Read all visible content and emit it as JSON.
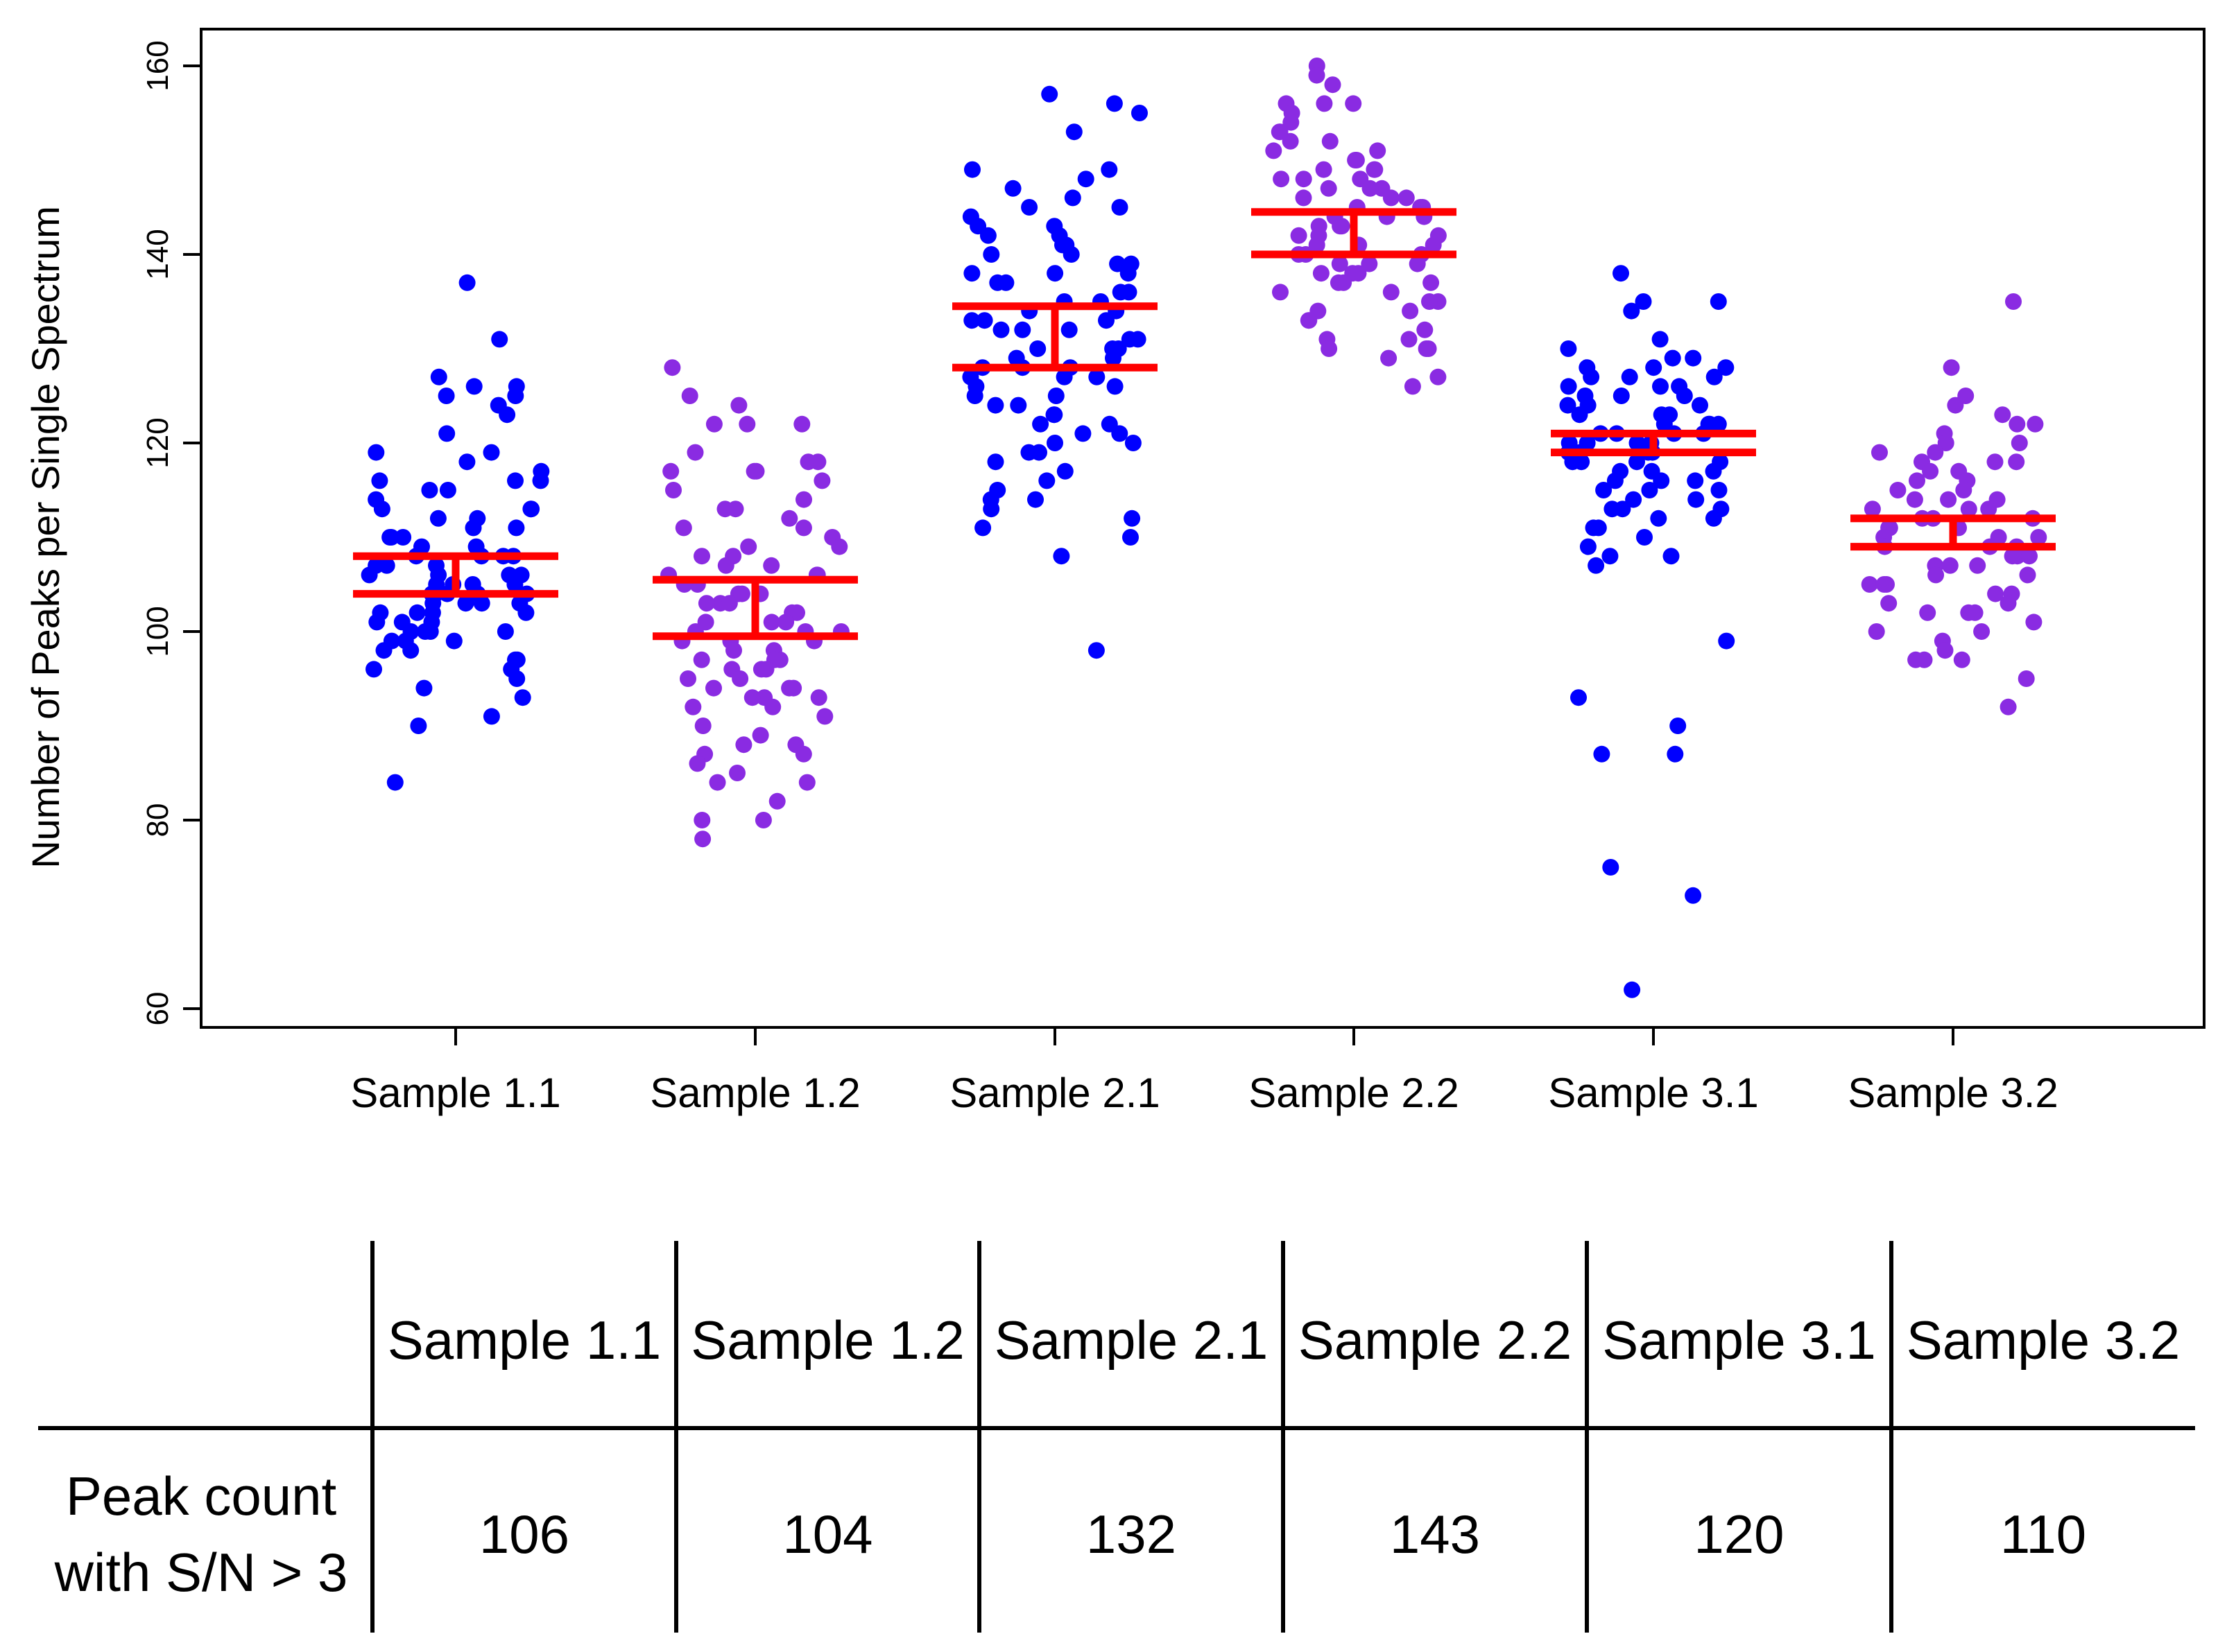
{
  "colors": {
    "blue": "#0000ff",
    "purple": "#8a2be2",
    "red": "#ff0000",
    "axis": "#000000"
  },
  "chart_data": {
    "type": "scatter",
    "title": "",
    "xlabel": "",
    "ylabel": "Number of Peaks per Single Spectrum",
    "ylim": [
      57,
      163
    ],
    "yticks": [
      60,
      80,
      100,
      120,
      140,
      160
    ],
    "grid": false,
    "series": [
      {
        "name": "Sample 1.1",
        "color": "blue",
        "ci": [
          104,
          108
        ],
        "values": [
          137,
          131,
          127,
          126,
          126,
          125,
          125,
          124,
          123,
          121,
          119,
          119,
          118,
          117,
          116,
          116,
          116,
          115,
          115,
          114,
          113,
          113,
          113,
          112,
          112,
          111,
          111,
          110,
          110,
          110,
          109,
          109,
          108,
          108,
          108,
          108,
          107,
          107,
          107,
          106,
          106,
          106,
          106,
          105,
          105,
          105,
          105,
          104,
          104,
          104,
          104,
          104,
          103,
          103,
          103,
          103,
          102,
          102,
          102,
          102,
          101,
          101,
          101,
          100,
          100,
          100,
          100,
          99,
          99,
          99,
          98,
          98,
          97,
          97,
          96,
          96,
          95,
          94,
          93,
          91,
          90,
          84
        ]
      },
      {
        "name": "Sample 1.2",
        "color": "purple",
        "ci": [
          99.5,
          105.5
        ],
        "values": [
          128,
          125,
          124,
          122,
          122,
          122,
          119,
          118,
          118,
          117,
          117,
          117,
          116,
          115,
          114,
          113,
          113,
          112,
          111,
          111,
          110,
          109,
          109,
          108,
          108,
          107,
          107,
          106,
          106,
          106,
          105,
          105,
          104,
          104,
          104,
          103,
          103,
          103,
          102,
          102,
          101,
          101,
          101,
          100,
          100,
          100,
          99,
          99,
          99,
          98,
          98,
          97,
          97,
          97,
          96,
          96,
          96,
          95,
          95,
          94,
          94,
          94,
          93,
          93,
          93,
          92,
          92,
          91,
          90,
          89,
          88,
          88,
          87,
          87,
          86,
          85,
          84,
          84,
          82,
          80,
          80,
          78
        ]
      },
      {
        "name": "Sample 2.1",
        "color": "blue",
        "ci": [
          128,
          134.5
        ],
        "values": [
          157,
          156,
          155,
          153,
          149,
          149,
          148,
          147,
          146,
          145,
          145,
          144,
          143,
          143,
          142,
          142,
          141,
          141,
          140,
          140,
          139,
          139,
          138,
          138,
          138,
          137,
          137,
          136,
          136,
          135,
          135,
          134,
          134,
          133,
          133,
          133,
          132,
          132,
          132,
          131,
          131,
          130,
          130,
          130,
          129,
          129,
          128,
          128,
          128,
          127,
          127,
          127,
          126,
          126,
          125,
          125,
          124,
          124,
          123,
          123,
          122,
          122,
          121,
          121,
          120,
          120,
          119,
          119,
          118,
          117,
          116,
          115,
          114,
          114,
          113,
          112,
          111,
          110,
          108,
          98
        ]
      },
      {
        "name": "Sample 2.2",
        "color": "purple",
        "ci": [
          140,
          144.5
        ],
        "values": [
          160,
          159,
          158,
          156,
          156,
          156,
          155,
          154,
          153,
          153,
          152,
          152,
          151,
          151,
          150,
          150,
          149,
          149,
          149,
          148,
          148,
          148,
          147,
          147,
          147,
          146,
          146,
          146,
          145,
          145,
          145,
          144,
          144,
          144,
          143,
          143,
          143,
          142,
          142,
          142,
          141,
          141,
          141,
          140,
          140,
          140,
          139,
          139,
          139,
          138,
          138,
          138,
          137,
          137,
          137,
          136,
          136,
          135,
          135,
          134,
          134,
          133,
          133,
          132,
          131,
          131,
          130,
          130,
          130,
          129,
          127,
          126
        ]
      },
      {
        "name": "Sample 3.1",
        "color": "blue",
        "ci": [
          119,
          121
        ],
        "values": [
          138,
          135,
          135,
          134,
          131,
          130,
          129,
          129,
          128,
          128,
          128,
          127,
          127,
          127,
          126,
          126,
          126,
          125,
          125,
          125,
          124,
          124,
          124,
          123,
          123,
          123,
          122,
          122,
          122,
          122,
          121,
          121,
          121,
          121,
          120,
          120,
          120,
          120,
          119,
          119,
          119,
          119,
          118,
          118,
          118,
          118,
          117,
          117,
          117,
          116,
          116,
          116,
          115,
          115,
          115,
          114,
          114,
          113,
          113,
          113,
          112,
          112,
          111,
          111,
          110,
          109,
          108,
          108,
          107,
          99,
          93,
          90,
          87,
          87,
          75,
          72,
          62
        ]
      },
      {
        "name": "Sample 3.2",
        "color": "purple",
        "ci": [
          109,
          112
        ],
        "values": [
          135,
          128,
          125,
          124,
          123,
          122,
          122,
          121,
          120,
          120,
          119,
          119,
          118,
          118,
          118,
          117,
          117,
          116,
          116,
          115,
          115,
          114,
          114,
          114,
          113,
          113,
          113,
          112,
          112,
          112,
          111,
          111,
          111,
          110,
          110,
          110,
          109,
          109,
          109,
          108,
          108,
          108,
          107,
          107,
          107,
          106,
          106,
          105,
          105,
          105,
          104,
          104,
          103,
          103,
          102,
          102,
          102,
          101,
          100,
          100,
          99,
          98,
          97,
          97,
          97,
          95,
          92
        ]
      }
    ],
    "table": {
      "header": [
        "Sample 1.1",
        "Sample 1.2",
        "Sample 2.1",
        "Sample 2.2",
        "Sample 3.1",
        "Sample 3.2"
      ],
      "row_label": [
        "Peak count",
        "with S/N > 3"
      ],
      "values": [
        "106",
        "104",
        "132",
        "143",
        "120",
        "110"
      ]
    }
  }
}
